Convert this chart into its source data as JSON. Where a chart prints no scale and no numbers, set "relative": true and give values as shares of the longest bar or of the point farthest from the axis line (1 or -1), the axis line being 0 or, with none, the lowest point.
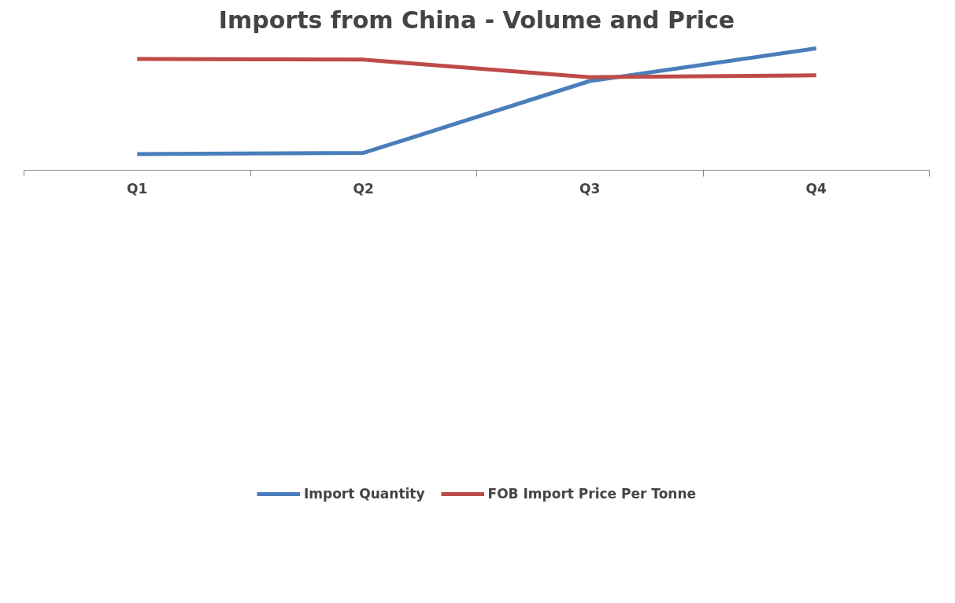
{
  "chart_data": {
    "type": "line",
    "title": "Imports from China - Volume and Price",
    "categories": [
      "Q1",
      "Q2",
      "Q3",
      "Q4"
    ],
    "relative": true,
    "legend": "bottom",
    "grid": false,
    "marker": "none",
    "line_style": "solid",
    "series": [
      {
        "name": "Import Quantity",
        "color": "#4a7ebb",
        "values": [
          0.133,
          0.142,
          0.732,
          1.0
        ]
      },
      {
        "name": "FOB Import Price Per Tonne",
        "color": "#be4b48",
        "values": [
          0.912,
          0.907,
          0.763,
          0.779
        ]
      }
    ]
  }
}
